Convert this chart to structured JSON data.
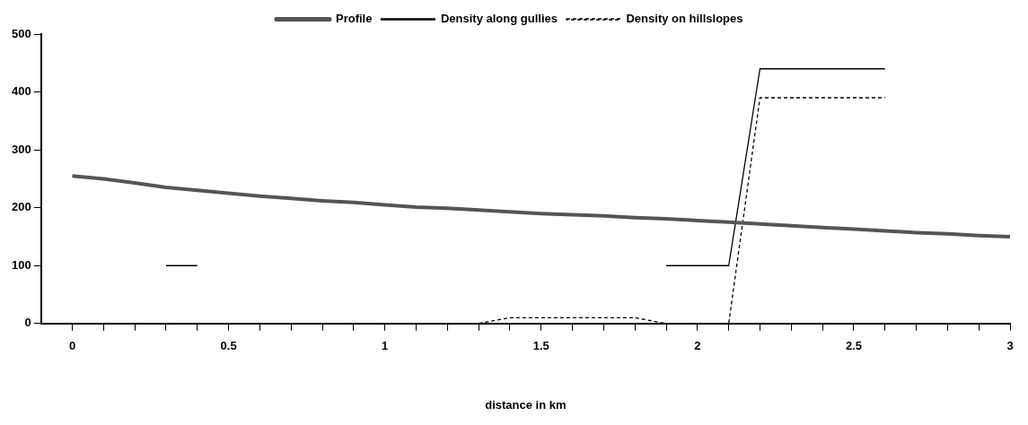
{
  "chart_data": {
    "type": "line",
    "xlabel": "distance in km",
    "xlim": [
      -0.1,
      3
    ],
    "xticks": [
      {
        "value": 0,
        "label": "0"
      },
      {
        "value": 0.1,
        "label": null
      },
      {
        "value": 0.2,
        "label": null
      },
      {
        "value": 0.3,
        "label": null
      },
      {
        "value": 0.4,
        "label": null
      },
      {
        "value": 0.5,
        "label": "0.5"
      },
      {
        "value": 0.6,
        "label": null
      },
      {
        "value": 0.7,
        "label": null
      },
      {
        "value": 0.8,
        "label": null
      },
      {
        "value": 0.9,
        "label": null
      },
      {
        "value": 1,
        "label": "1"
      },
      {
        "value": 1.1,
        "label": null
      },
      {
        "value": 1.2,
        "label": null
      },
      {
        "value": 1.3,
        "label": null
      },
      {
        "value": 1.4,
        "label": null
      },
      {
        "value": 1.5,
        "label": "1.5"
      },
      {
        "value": 1.6,
        "label": null
      },
      {
        "value": 1.7,
        "label": null
      },
      {
        "value": 1.8,
        "label": null
      },
      {
        "value": 1.9,
        "label": null
      },
      {
        "value": 2,
        "label": "2"
      },
      {
        "value": 2.1,
        "label": null
      },
      {
        "value": 2.2,
        "label": null
      },
      {
        "value": 2.3,
        "label": null
      },
      {
        "value": 2.4,
        "label": null
      },
      {
        "value": 2.5,
        "label": "2.5"
      },
      {
        "value": 2.6,
        "label": null
      },
      {
        "value": 2.7,
        "label": null
      },
      {
        "value": 2.8,
        "label": null
      },
      {
        "value": 2.9,
        "label": null
      },
      {
        "value": 3,
        "label": "3"
      }
    ],
    "ylim": [
      0,
      500
    ],
    "yticks": [
      0,
      100,
      200,
      300,
      400,
      500
    ],
    "grid": false,
    "legend": "top",
    "marker": "none",
    "series": [
      {
        "name": "Profile",
        "color": "#555555",
        "line_style": "solid",
        "x": [
          0,
          0.1,
          0.2,
          0.3,
          0.4,
          0.5,
          0.6,
          0.7,
          0.8,
          0.9,
          1,
          1.1,
          1.2,
          1.3,
          1.4,
          1.5,
          1.6,
          1.7,
          1.8,
          1.9,
          2,
          2.1,
          2.2,
          2.3,
          2.4,
          2.5,
          2.6,
          2.7,
          2.8,
          2.9,
          3
        ],
        "values": [
          255,
          250,
          243,
          235,
          230,
          225,
          220,
          216,
          212,
          209,
          205,
          201,
          199,
          196,
          193,
          190,
          188,
          186,
          183,
          181,
          178,
          175,
          172,
          169,
          166,
          163,
          160,
          157,
          155,
          152,
          150
        ]
      },
      {
        "name": "Density along gullies",
        "color": "#000000",
        "line_style": "solid",
        "x": [
          0.3,
          0.4,
          0.5,
          1.8,
          1.9,
          2,
          2.1,
          2.2,
          2.3,
          2.4,
          2.5,
          2.6
        ],
        "values": [
          100,
          100,
          null,
          null,
          100,
          100,
          100,
          440,
          440,
          440,
          440,
          440
        ]
      },
      {
        "name": "Density on hillslopes",
        "color": "#000000",
        "line_style": "dashed",
        "x": [
          1.1,
          1.2,
          1.3,
          1.4,
          1.5,
          1.6,
          1.7,
          1.8,
          1.9,
          2,
          2.1,
          2.2,
          2.3,
          2.4,
          2.5,
          2.6
        ],
        "values": [
          0,
          0,
          0,
          10,
          10,
          10,
          10,
          10,
          0,
          0,
          0,
          390,
          390,
          390,
          390,
          390
        ]
      }
    ]
  }
}
